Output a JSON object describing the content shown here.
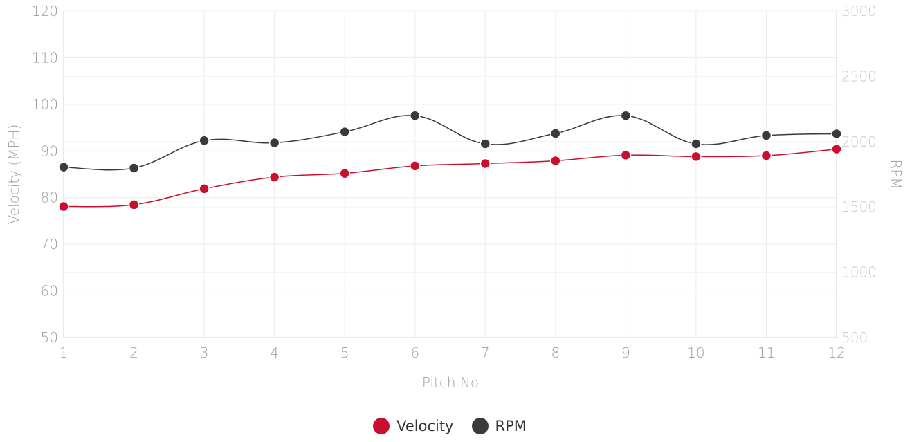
{
  "chart_data": {
    "type": "line",
    "xlabel": "Pitch No",
    "ylabel": "Velocity (MPH)",
    "y2label": "RPM",
    "categories": [
      "1",
      "2",
      "3",
      "4",
      "5",
      "6",
      "7",
      "8",
      "9",
      "10",
      "11",
      "12"
    ],
    "ylim": [
      50,
      120
    ],
    "yticks": [
      "50",
      "60",
      "70",
      "80",
      "90",
      "100",
      "110",
      "120"
    ],
    "y2lim": [
      500,
      3000
    ],
    "y2ticks": [
      "500",
      "1000",
      "1500",
      "2000",
      "2500",
      "3000"
    ],
    "grid": true,
    "legend_position": "bottom",
    "series": [
      {
        "name": "Velocity",
        "axis": "left",
        "color": "#c8102e",
        "values": [
          78.1,
          78.5,
          81.9,
          84.4,
          85.2,
          86.8,
          87.3,
          87.9,
          89.1,
          88.8,
          89.0,
          90.4
        ]
      },
      {
        "name": "RPM",
        "axis": "right",
        "color": "#3a3a3a",
        "values": [
          1805,
          1798,
          2008,
          1991,
          2075,
          2199,
          1983,
          2063,
          2199,
          1983,
          2047,
          2060
        ]
      }
    ]
  }
}
